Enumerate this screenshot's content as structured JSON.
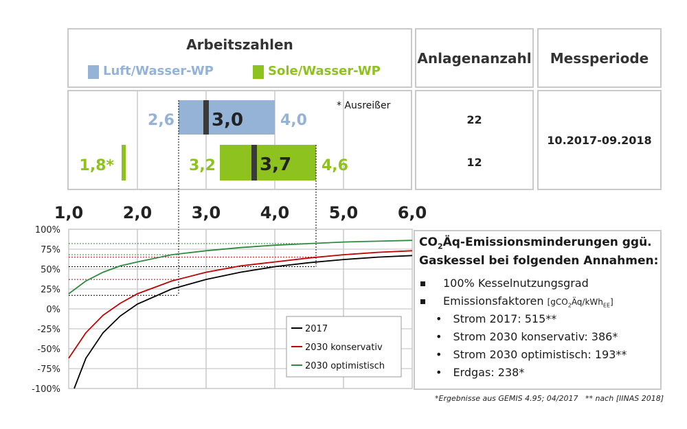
{
  "header": {
    "arbeitszahlen": "Arbeitszahlen",
    "anlagenanzahl": "Anlagenanzahl",
    "messperiode": "Messperiode"
  },
  "legend_top": {
    "luft": "Luft/Wasser-WP",
    "sole": "Sole/Wasser-WP",
    "luft_color": "#95b3d7",
    "sole_color": "#8dc21f"
  },
  "results": {
    "note": "* Ausreißer",
    "luft": {
      "min_label": "2,6",
      "median_label": "3,0",
      "max_label": "4,0",
      "min": 2.6,
      "median": 3.0,
      "max": 4.0,
      "count": "22"
    },
    "sole": {
      "min_label": "3,2",
      "median_label": "3,7",
      "max_label": "4,6",
      "min": 3.2,
      "median": 3.7,
      "max": 4.6,
      "count": "12",
      "outlier_label": "1,8*",
      "outlier": 1.8
    },
    "period": "10.2017-09.2018"
  },
  "chart_data": {
    "type": "line",
    "xlim": [
      1.0,
      6.0
    ],
    "ylim": [
      -100,
      100
    ],
    "xticks": [
      "1,0",
      "2,0",
      "3,0",
      "4,0",
      "5,0",
      "6,0"
    ],
    "yticks": [
      "100%",
      "75%",
      "50%",
      "25%",
      "0%",
      "-25%",
      "-50%",
      "-75%",
      "-100%"
    ],
    "series": [
      {
        "name": "2017",
        "color": "#000000",
        "x": [
          1.08,
          1.25,
          1.5,
          1.75,
          2.0,
          2.5,
          3.0,
          3.5,
          4.0,
          4.5,
          5.0,
          5.5,
          6.0
        ],
        "values": [
          -100,
          -62,
          -30,
          -9,
          6,
          25,
          37,
          46,
          53,
          58,
          62,
          65,
          67
        ]
      },
      {
        "name": "2030 konservativ",
        "color": "#c00000",
        "x": [
          1.0,
          1.25,
          1.5,
          1.75,
          2.0,
          2.5,
          3.0,
          3.5,
          4.0,
          4.5,
          5.0,
          5.5,
          6.0
        ],
        "values": [
          -62,
          -30,
          -8,
          7,
          19,
          35,
          46,
          54,
          59,
          64,
          68,
          71,
          73
        ]
      },
      {
        "name": "2030 optimistisch",
        "color": "#2e8b3e",
        "x": [
          1.0,
          1.25,
          1.5,
          1.75,
          2.0,
          2.5,
          3.0,
          3.5,
          4.0,
          4.5,
          5.0,
          5.5,
          6.0
        ],
        "values": [
          19,
          35,
          46,
          54,
          59,
          68,
          73,
          77,
          80,
          82,
          84,
          85,
          86
        ]
      }
    ]
  },
  "info": {
    "title_line1_pre": "CO",
    "title_line1_sub": "2",
    "title_line1_post": "Äq-Emissionsminderungen ggü.",
    "title_line2": "Gaskessel bei folgenden Annahmen:",
    "b1": "100% Kesselnutzungsgrad",
    "b2_main": "Emissionsfaktoren",
    "b2_unit_pre": "[gCO",
    "b2_unit_sub": "2",
    "b2_unit_mid": "Äq/kWh",
    "b2_unit_sub2": "EE",
    "b2_unit_post": "]",
    "s1": "Strom 2017: 515**",
    "s2": "Strom 2030 konservativ: 386*",
    "s3": "Strom 2030 optimistisch: 193**",
    "s4": "Erdgas: 238*"
  },
  "footnote": "*Ergebnisse aus GEMIS 4.95; 04/2017   ** nach [IINAS 2018]"
}
